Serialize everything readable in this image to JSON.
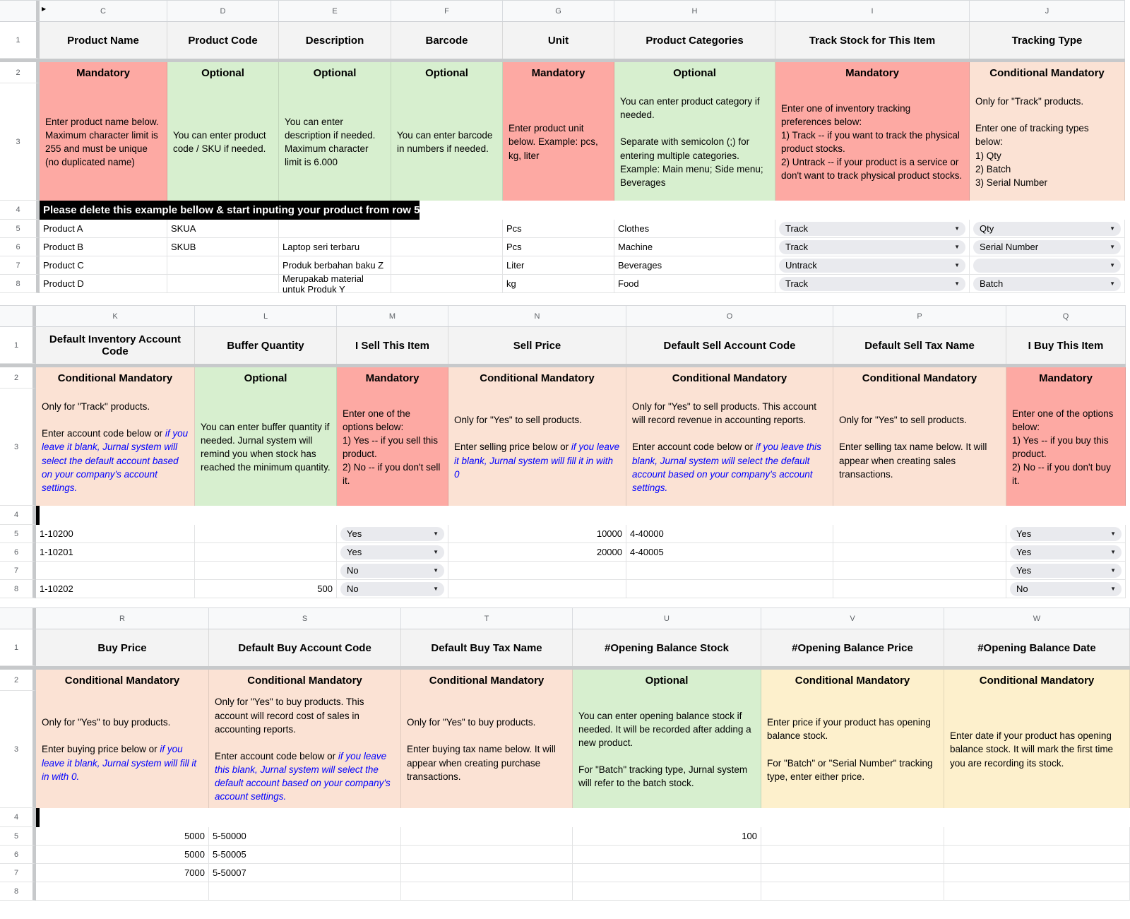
{
  "colors": {
    "mandatory_red": "#fda9a3",
    "optional_green": "#d7efcf",
    "conditional_mandatory_peach": "#fbe2d4",
    "conditional_mandatory_yellow": "#fdf0cc",
    "header_gray": "#f3f3f3",
    "banner_black": "#000000",
    "note_blue": "#0000ff"
  },
  "icons": {
    "dropdown_arrow": "▼",
    "hidden_columns_marker": "▶"
  },
  "sections": [
    {
      "row_numbers": [
        "1",
        "2",
        "3",
        "4",
        "5",
        "6",
        "7",
        "8"
      ],
      "banner": "Please delete this example bellow & start inputing your product from row 5",
      "columns": [
        {
          "letter": "C",
          "title": "Product Name",
          "status": "Mandatory",
          "desc": [
            {
              "t": "Enter product name below. Maximum character limit is 255 and must be unique (no duplicated name)"
            }
          ]
        },
        {
          "letter": "D",
          "title": "Product Code",
          "status": "Optional",
          "desc": [
            {
              "t": "You can enter product code / SKU if needed."
            }
          ]
        },
        {
          "letter": "E",
          "title": "Description",
          "status": "Optional",
          "desc": [
            {
              "t": "You can enter description if needed. Maximum character limit is 6.000"
            }
          ]
        },
        {
          "letter": "F",
          "title": "Barcode",
          "status": "Optional",
          "desc": [
            {
              "t": "You can enter barcode in numbers if needed."
            }
          ]
        },
        {
          "letter": "G",
          "title": "Unit",
          "status": "Mandatory",
          "desc": [
            {
              "t": "Enter product unit below. Example: pcs, kg, liter"
            }
          ]
        },
        {
          "letter": "H",
          "title": "Product Categories",
          "status": "Optional",
          "desc": [
            {
              "t": "You can enter product category if needed.\n\nSeparate with semicolon (;) for entering multiple categories. Example: Main menu; Side menu; Beverages"
            }
          ]
        },
        {
          "letter": "I",
          "title": "Track Stock for This Item",
          "status": "Mandatory",
          "desc": [
            {
              "t": "Enter one of inventory tracking preferences below:\n1) Track -- if you want to track the physical product stocks.\n2) Untrack -- if your product is a service or don't want to track physical product stocks."
            }
          ]
        },
        {
          "letter": "J",
          "title": "Tracking Type",
          "status": "Conditional Mandatory",
          "desc": [
            {
              "t": "Only for \"Track\" products.\n\nEnter one of tracking types below:\n1) Qty\n2) Batch\n3) Serial Number"
            }
          ]
        }
      ],
      "rows": [
        {
          "cells": [
            "Product A",
            "SKUA",
            "",
            "",
            "Pcs",
            "Clothes",
            "Track",
            "Qty"
          ]
        },
        {
          "cells": [
            "Product B",
            "SKUB",
            "Laptop seri terbaru",
            "",
            "Pcs",
            "Machine",
            "Track",
            "Serial Number"
          ]
        },
        {
          "cells": [
            "Product C",
            "",
            "Produk berbahan baku Z",
            "",
            "Liter",
            "Beverages",
            "Untrack",
            ""
          ]
        },
        {
          "cells": [
            "Product D",
            "",
            "Merupakab material untuk Produk Y",
            "",
            "kg",
            "Food",
            "Track",
            "Batch"
          ]
        }
      ]
    },
    {
      "row_numbers": [
        "1",
        "2",
        "3",
        "4",
        "5",
        "6",
        "7",
        "8"
      ],
      "banner": "",
      "columns": [
        {
          "letter": "K",
          "title": "Default Inventory Account Code",
          "status": "Conditional Mandatory",
          "desc": [
            {
              "t": "Only for \"Track\" products.\n\nEnter account code below or "
            },
            {
              "t": "if you leave it blank, Jurnal system will select the default account based on your company's account settings.",
              "b": true
            }
          ]
        },
        {
          "letter": "L",
          "title": "Buffer Quantity",
          "status": "Optional",
          "desc": [
            {
              "t": "You can enter buffer quantity if needed. Jurnal system will remind you when stock has reached the minimum quantity."
            }
          ]
        },
        {
          "letter": "M",
          "title": "I Sell This Item",
          "status": "Mandatory",
          "desc": [
            {
              "t": "Enter one of the options below:\n1) Yes -- if you sell this product.\n2) No -- if you don't sell it."
            }
          ]
        },
        {
          "letter": "N",
          "title": "Sell Price",
          "status": "Conditional Mandatory",
          "desc": [
            {
              "t": "Only for \"Yes\" to sell products.\n\nEnter selling price below or "
            },
            {
              "t": "if you leave it blank, Jurnal system will fill it in with 0",
              "b": true
            }
          ]
        },
        {
          "letter": "O",
          "title": "Default Sell Account Code",
          "status": "Conditional Mandatory",
          "desc": [
            {
              "t": "Only for \"Yes\" to sell products. This account will record revenue in accounting reports.\n\nEnter account code below or "
            },
            {
              "t": "if you leave this blank, Jurnal system will select the default account based on your company's account settings.",
              "b": true
            }
          ]
        },
        {
          "letter": "P",
          "title": "Default Sell Tax Name",
          "status": "Conditional Mandatory",
          "desc": [
            {
              "t": "Only for \"Yes\" to sell products.\n\nEnter selling tax name below. It will appear when creating sales transactions."
            }
          ]
        },
        {
          "letter": "Q",
          "title": "I Buy This Item",
          "status": "Mandatory",
          "desc": [
            {
              "t": "Enter one of the options below:\n1) Yes -- if you buy this product.\n2) No -- if you don't buy it."
            }
          ]
        }
      ],
      "rows": [
        {
          "cells": [
            "1-10200",
            "",
            "Yes",
            "10000",
            "4-40000",
            "",
            "Yes"
          ]
        },
        {
          "cells": [
            "1-10201",
            "",
            "Yes",
            "20000",
            "4-40005",
            "",
            "Yes"
          ]
        },
        {
          "cells": [
            "",
            "",
            "No",
            "",
            "",
            "",
            "Yes"
          ]
        },
        {
          "cells": [
            "1-10202",
            "500",
            "No",
            "",
            "",
            "",
            "No"
          ]
        }
      ]
    },
    {
      "row_numbers": [
        "1",
        "2",
        "3",
        "4",
        "5",
        "6",
        "7",
        "8"
      ],
      "banner": "",
      "columns": [
        {
          "letter": "R",
          "title": "Buy Price",
          "status": "Conditional Mandatory",
          "desc": [
            {
              "t": "Only for \"Yes\" to buy products.\n\nEnter buying price below or "
            },
            {
              "t": "if you leave it blank, Jurnal system will fill it in with 0.",
              "b": true
            }
          ]
        },
        {
          "letter": "S",
          "title": "Default Buy Account Code",
          "status": "Conditional Mandatory",
          "desc": [
            {
              "t": "Only for \"Yes\" to buy products. This account will record cost of sales in accounting reports.\n\nEnter account code below or "
            },
            {
              "t": "if you leave this blank, Jurnal system will select the default account based on your company's account settings.",
              "b": true
            }
          ]
        },
        {
          "letter": "T",
          "title": "Default Buy Tax Name",
          "status": "Conditional Mandatory",
          "desc": [
            {
              "t": "Only for \"Yes\" to buy products.\n\nEnter buying tax name below. It will appear when creating purchase transactions."
            }
          ]
        },
        {
          "letter": "U",
          "title": "#Opening Balance Stock",
          "status": "Optional",
          "desc": [
            {
              "t": "You can enter opening balance stock if needed. It will be recorded after adding a new product.\n\nFor \"Batch\" tracking type, Jurnal system will refer to the batch stock."
            }
          ]
        },
        {
          "letter": "V",
          "title": "#Opening Balance Price",
          "status": "Conditional Mandatory",
          "desc": [
            {
              "t": "Enter price if your product has opening balance stock.\n\nFor \"Batch\" or \"Serial Number\" tracking type, enter either price."
            }
          ]
        },
        {
          "letter": "W",
          "title": "#Opening Balance Date",
          "status": "Conditional Mandatory",
          "desc": [
            {
              "t": "Enter date if your product has opening balance stock. It will mark the first time you are recording its stock."
            }
          ]
        }
      ],
      "rows": [
        {
          "cells": [
            "5000",
            "5-50000",
            "",
            "100",
            "",
            ""
          ]
        },
        {
          "cells": [
            "5000",
            "5-50005",
            "",
            "",
            "",
            ""
          ]
        },
        {
          "cells": [
            "7000",
            "5-50007",
            "",
            "",
            "",
            ""
          ]
        },
        {
          "cells": [
            "",
            "",
            "",
            "",
            "",
            ""
          ]
        }
      ]
    }
  ]
}
